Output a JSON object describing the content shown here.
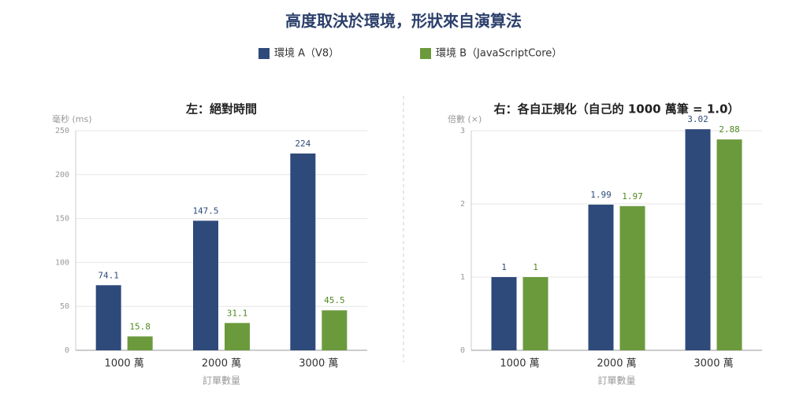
{
  "title": "高度取決於環境，形狀來自演算法",
  "chart_data": [
    {
      "type": "bar",
      "title": "左：絕對時間",
      "y_label": "毫秒 (ms)",
      "x_label": "訂單數量",
      "categories": [
        "1000 萬",
        "2000 萬",
        "3000 萬"
      ],
      "series": [
        {
          "name": "環境 A（V8）",
          "color": "#2e4a7b",
          "values": [
            74.1,
            147.5,
            224
          ]
        },
        {
          "name": "環境 B（JavaScriptCore）",
          "color": "#6b9a3d",
          "values": [
            15.8,
            31.1,
            45.5
          ]
        }
      ],
      "ylim": [
        0,
        250
      ],
      "yticks": [
        0,
        50,
        100,
        150,
        200,
        250
      ],
      "grid": true
    },
    {
      "type": "bar",
      "title": "右：各自正規化（自己的 1000 萬筆 = 1.0）",
      "y_label": "倍數 (×)",
      "x_label": "訂單數量",
      "categories": [
        "1000 萬",
        "2000 萬",
        "3000 萬"
      ],
      "series": [
        {
          "color": "#2e4a7b",
          "values": [
            1,
            1.99,
            3.02
          ]
        },
        {
          "color": "#6b9a3d",
          "values": [
            1,
            1.97,
            2.88
          ]
        }
      ],
      "ylim": [
        0,
        3
      ],
      "yticks": [
        0,
        1,
        2,
        3
      ],
      "grid": true
    }
  ]
}
